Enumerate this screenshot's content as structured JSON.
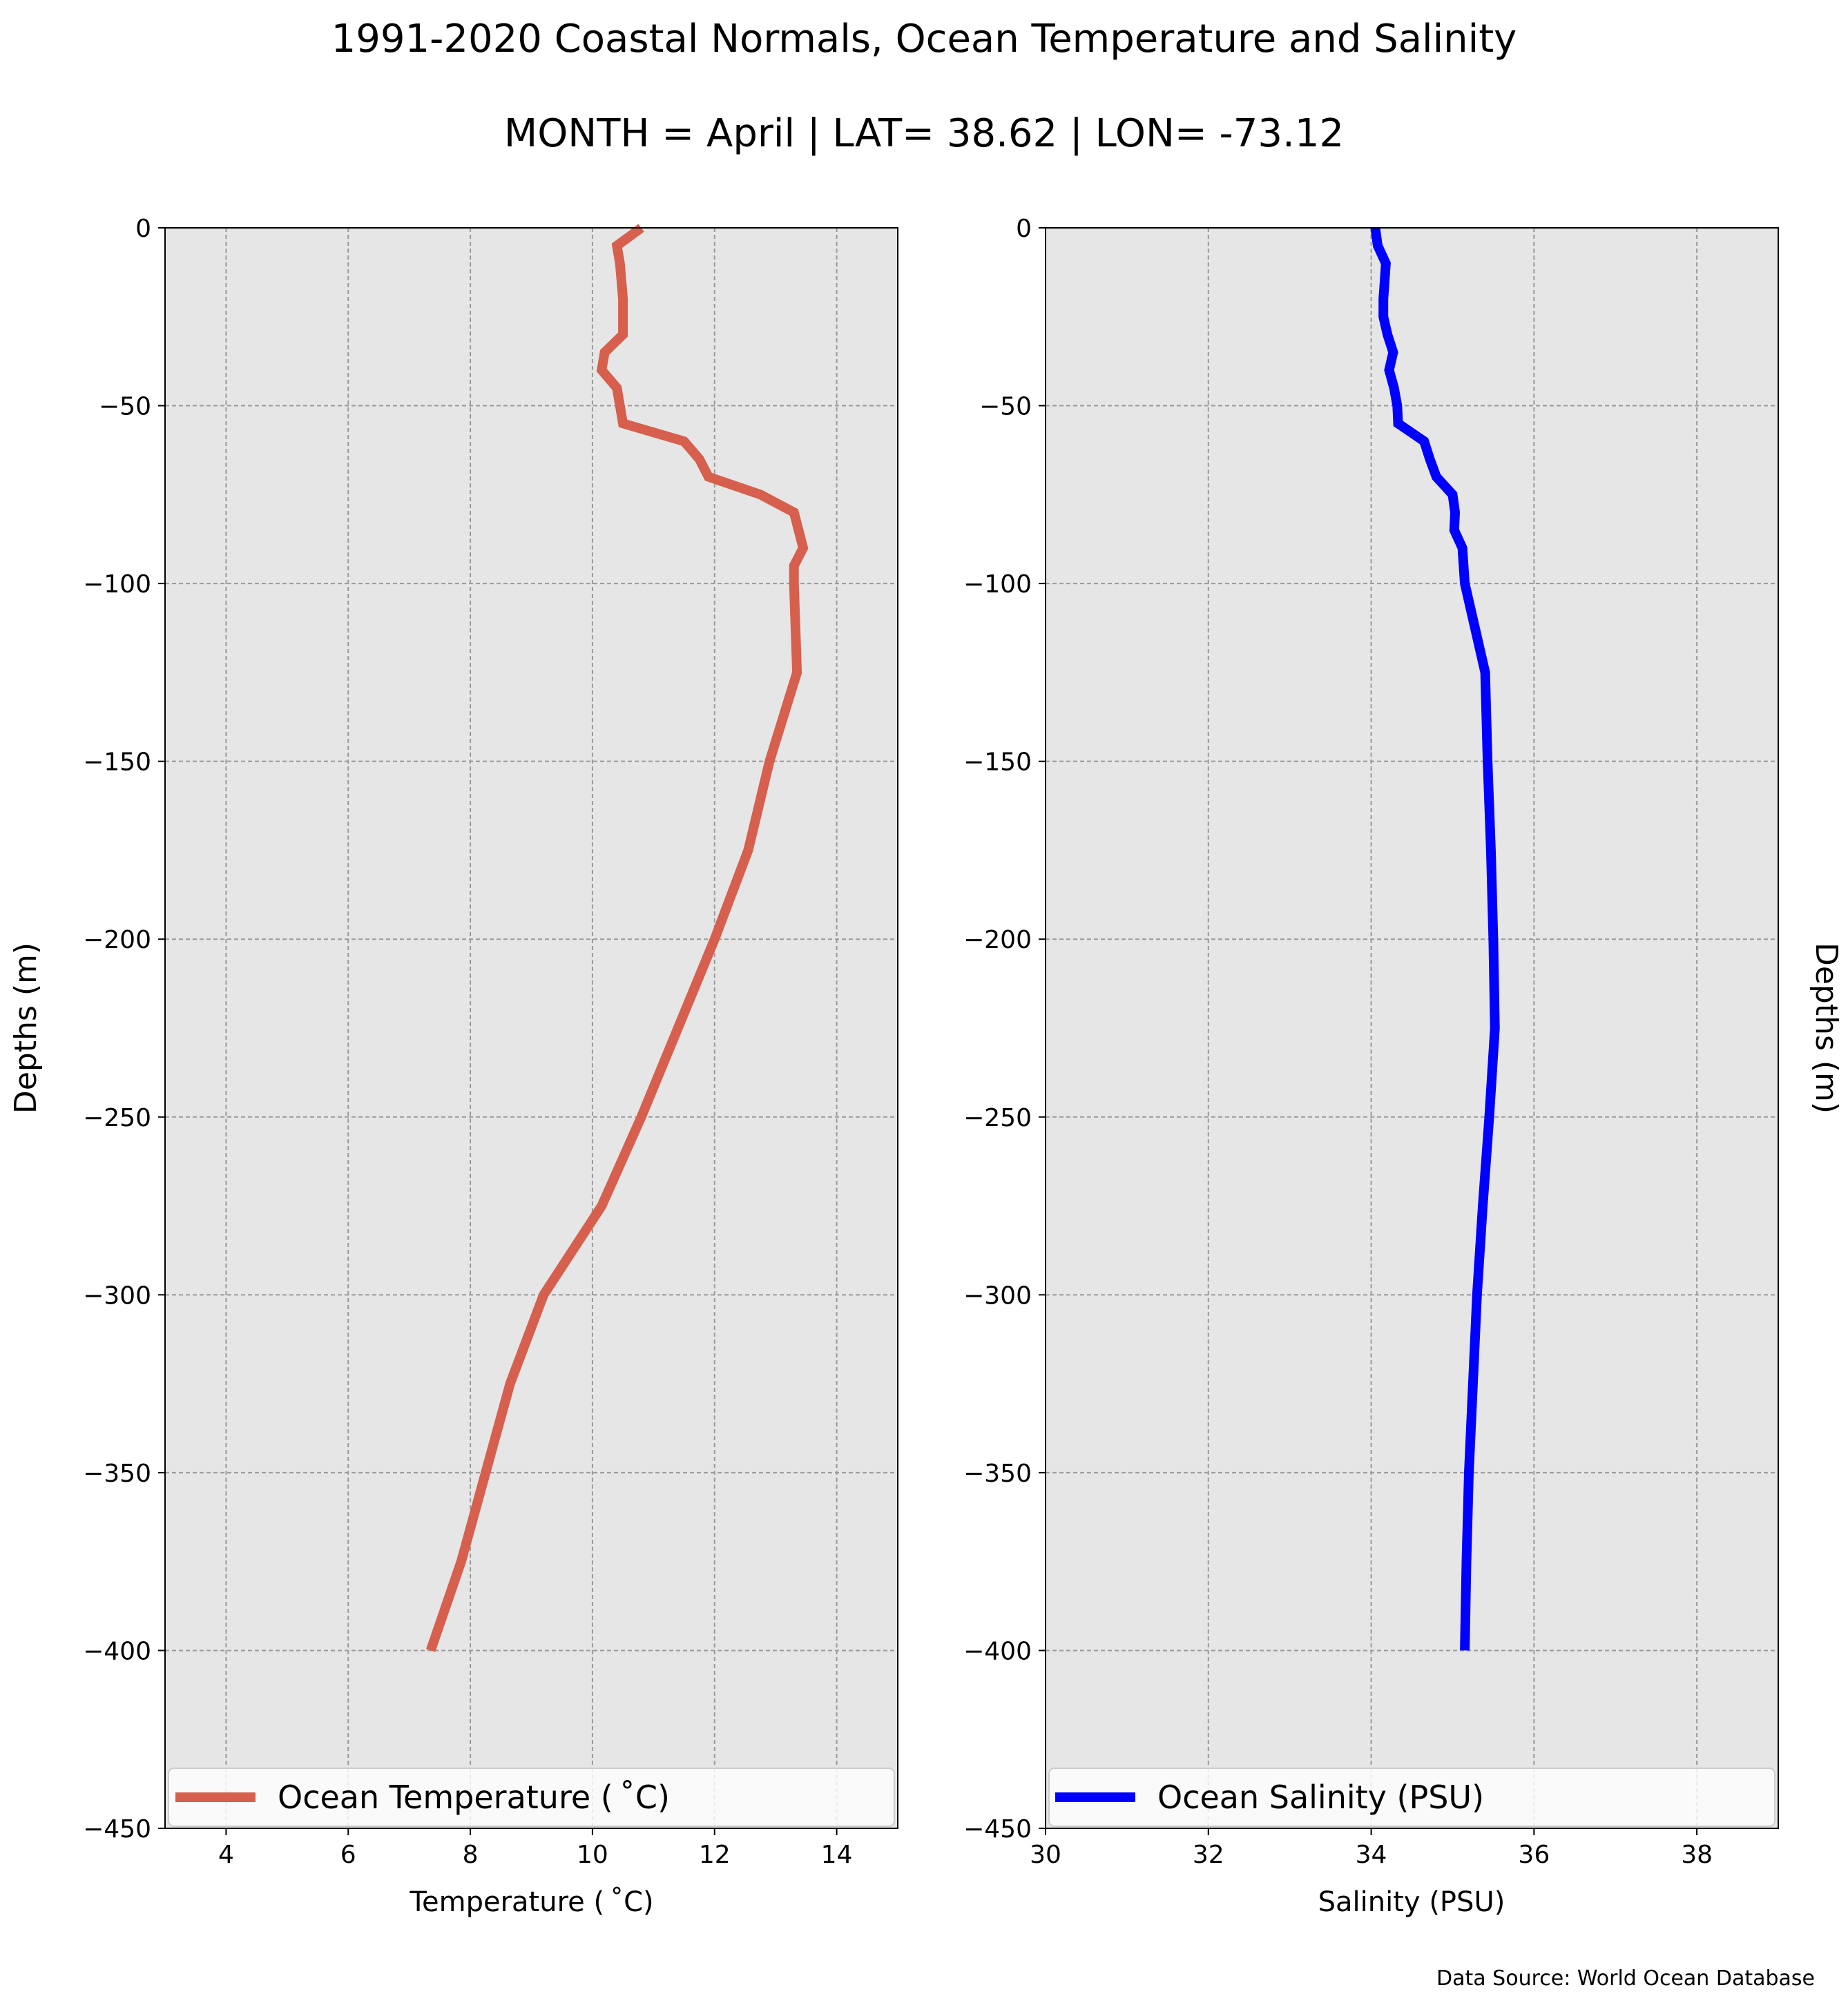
{
  "figure": {
    "title_line1": "1991-2020 Coastal Normals, Ocean Temperature and Salinity",
    "title_line2": "MONTH = April | LAT= 38.62 | LON= -73.12",
    "source_note": "Data Source: World Ocean Database"
  },
  "chart_data": [
    {
      "type": "line",
      "xlabel": "Temperature ($^\\circ$C)",
      "xlabel_display": "Temperature ( ˚C)",
      "ylabel": "Depths (m)",
      "xlim": [
        3,
        15
      ],
      "ylim": [
        -450,
        0
      ],
      "xticks": [
        4,
        6,
        8,
        10,
        12,
        14
      ],
      "yticks": [
        0,
        -50,
        -100,
        -150,
        -200,
        -250,
        -300,
        -350,
        -400,
        -450
      ],
      "grid": true,
      "legend_position": "lower center",
      "series": [
        {
          "name": "Ocean Temperature ( ˚C)",
          "color": "#d65f4e",
          "points": [
            [
              10.8,
              0
            ],
            [
              10.4,
              -5
            ],
            [
              10.45,
              -10
            ],
            [
              10.5,
              -20
            ],
            [
              10.5,
              -25
            ],
            [
              10.5,
              -30
            ],
            [
              10.2,
              -35
            ],
            [
              10.15,
              -40
            ],
            [
              10.4,
              -45
            ],
            [
              10.45,
              -50
            ],
            [
              10.5,
              -55
            ],
            [
              11.5,
              -60
            ],
            [
              11.75,
              -65
            ],
            [
              11.9,
              -70
            ],
            [
              12.75,
              -75
            ],
            [
              13.3,
              -80
            ],
            [
              13.45,
              -90
            ],
            [
              13.3,
              -95
            ],
            [
              13.3,
              -100
            ],
            [
              13.35,
              -125
            ],
            [
              12.9,
              -150
            ],
            [
              12.55,
              -175
            ],
            [
              12.0,
              -200
            ],
            [
              11.4,
              -225
            ],
            [
              10.8,
              -250
            ],
            [
              10.15,
              -275
            ],
            [
              9.2,
              -300
            ],
            [
              8.65,
              -325
            ],
            [
              8.25,
              -350
            ],
            [
              7.85,
              -375
            ],
            [
              7.35,
              -400
            ]
          ]
        }
      ]
    },
    {
      "type": "line",
      "xlabel": "Salinity (PSU)",
      "ylabel": "Depths (m)",
      "xlim": [
        30,
        39
      ],
      "ylim": [
        -450,
        0
      ],
      "xticks": [
        30,
        32,
        34,
        36,
        38
      ],
      "yticks": [
        0,
        -50,
        -100,
        -150,
        -200,
        -250,
        -300,
        -350,
        -400,
        -450
      ],
      "grid": true,
      "legend_position": "lower center",
      "series": [
        {
          "name": "Ocean Salinity (PSU)",
          "color": "#0000ff",
          "points": [
            [
              34.05,
              0
            ],
            [
              34.08,
              -5
            ],
            [
              34.18,
              -10
            ],
            [
              34.15,
              -20
            ],
            [
              34.15,
              -25
            ],
            [
              34.2,
              -30
            ],
            [
              34.27,
              -35
            ],
            [
              34.22,
              -40
            ],
            [
              34.28,
              -45
            ],
            [
              34.32,
              -50
            ],
            [
              34.33,
              -55
            ],
            [
              34.65,
              -60
            ],
            [
              34.72,
              -65
            ],
            [
              34.8,
              -70
            ],
            [
              35.0,
              -75
            ],
            [
              35.03,
              -80
            ],
            [
              35.02,
              -85
            ],
            [
              35.12,
              -90
            ],
            [
              35.15,
              -100
            ],
            [
              35.4,
              -125
            ],
            [
              35.43,
              -150
            ],
            [
              35.47,
              -175
            ],
            [
              35.5,
              -200
            ],
            [
              35.52,
              -225
            ],
            [
              35.45,
              -250
            ],
            [
              35.37,
              -275
            ],
            [
              35.3,
              -300
            ],
            [
              35.25,
              -325
            ],
            [
              35.2,
              -350
            ],
            [
              35.17,
              -375
            ],
            [
              35.15,
              -400
            ]
          ]
        }
      ]
    }
  ]
}
